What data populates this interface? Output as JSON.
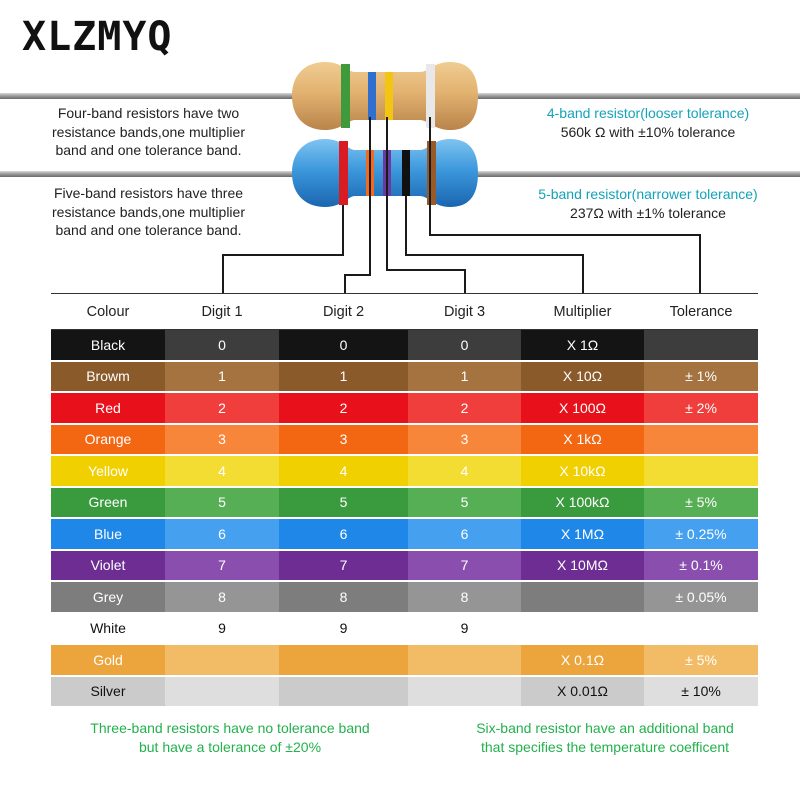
{
  "brand": "XLZMYQ",
  "notes": {
    "four_band_desc": [
      "Four-band resistors have two",
      "resistance bands,one multiplier",
      "band and one tolerance band."
    ],
    "five_band_desc": [
      "Five-band resistors have three",
      "resistance bands,one multiplier",
      "band and one tolerance band."
    ],
    "four_band_title": "4-band resistor(looser tolerance)",
    "four_band_value": "560k Ω with ±10% tolerance",
    "five_band_title": "5-band resistor(narrower tolerance)",
    "five_band_value": "237Ω with ±1% tolerance"
  },
  "headers": [
    "Colour",
    "Digit 1",
    "Digit 2",
    "Digit 3",
    "Multiplier",
    "Tolerance"
  ],
  "rows": [
    {
      "cells": [
        "Black",
        "0",
        "0",
        "0",
        "X 1Ω",
        ""
      ],
      "color": "#141414",
      "text_color": "#ffffff",
      "alt_color": "#3d3d3d"
    },
    {
      "cells": [
        "Browm",
        "1",
        "1",
        "1",
        "X 10Ω",
        "± 1%"
      ],
      "color": "#8a5a2b",
      "text_color": "#ffffff",
      "alt_color": "#a4733f"
    },
    {
      "cells": [
        "Red",
        "2",
        "2",
        "2",
        "X 100Ω",
        "± 2%"
      ],
      "color": "#e8111b",
      "text_color": "#ffffff",
      "alt_color": "#ef3e3b"
    },
    {
      "cells": [
        "Orange",
        "3",
        "3",
        "3",
        "X 1kΩ",
        ""
      ],
      "color": "#f46712",
      "text_color": "#ffffff",
      "alt_color": "#f8863a"
    },
    {
      "cells": [
        "Yellow",
        "4",
        "4",
        "4",
        "X 10kΩ",
        ""
      ],
      "color": "#f0d000",
      "text_color": "#ffffff",
      "alt_color": "#f4dd33"
    },
    {
      "cells": [
        "Green",
        "5",
        "5",
        "5",
        "X 100kΩ",
        "± 5%"
      ],
      "color": "#3a9a3e",
      "text_color": "#ffffff",
      "alt_color": "#56ae55"
    },
    {
      "cells": [
        "Blue",
        "6",
        "6",
        "6",
        "X 1MΩ",
        "± 0.25%"
      ],
      "color": "#1f87e8",
      "text_color": "#ffffff",
      "alt_color": "#46a0f0"
    },
    {
      "cells": [
        "Violet",
        "7",
        "7",
        "7",
        "X 10MΩ",
        "± 0.1%"
      ],
      "color": "#6e2d93",
      "text_color": "#ffffff",
      "alt_color": "#8a4fae"
    },
    {
      "cells": [
        "Grey",
        "8",
        "8",
        "8",
        "",
        "± 0.05%"
      ],
      "color": "#7d7d7d",
      "text_color": "#ffffff",
      "alt_color": "#959595"
    },
    {
      "cells": [
        "White",
        "9",
        "9",
        "9",
        "",
        ""
      ],
      "color": "#ffffff",
      "text_color": "#111111",
      "alt_color": "#ffffff"
    },
    {
      "cells": [
        "Gold",
        "",
        "",
        "",
        "X 0.1Ω",
        "± 5%"
      ],
      "color": "#eca53c",
      "text_color": "#ffffff",
      "alt_color": "#f2bb66"
    },
    {
      "cells": [
        "Silver",
        "",
        "",
        "",
        "X 0.01Ω",
        "± 10%"
      ],
      "color": "#cbcbcb",
      "text_color": "#111111",
      "alt_color": "#dedede"
    }
  ],
  "footnotes": {
    "left": [
      "Three-band resistors have no tolerance band",
      "but have a tolerance of ±20%"
    ],
    "right": [
      "Six-band resistor have an additional band",
      "that specifies the temperature coefficent"
    ]
  },
  "resistor_bands": {
    "four_band": [
      "green",
      "blue",
      "yellow",
      "silver"
    ],
    "five_band": [
      "red",
      "orange",
      "violet",
      "black",
      "brown"
    ]
  }
}
